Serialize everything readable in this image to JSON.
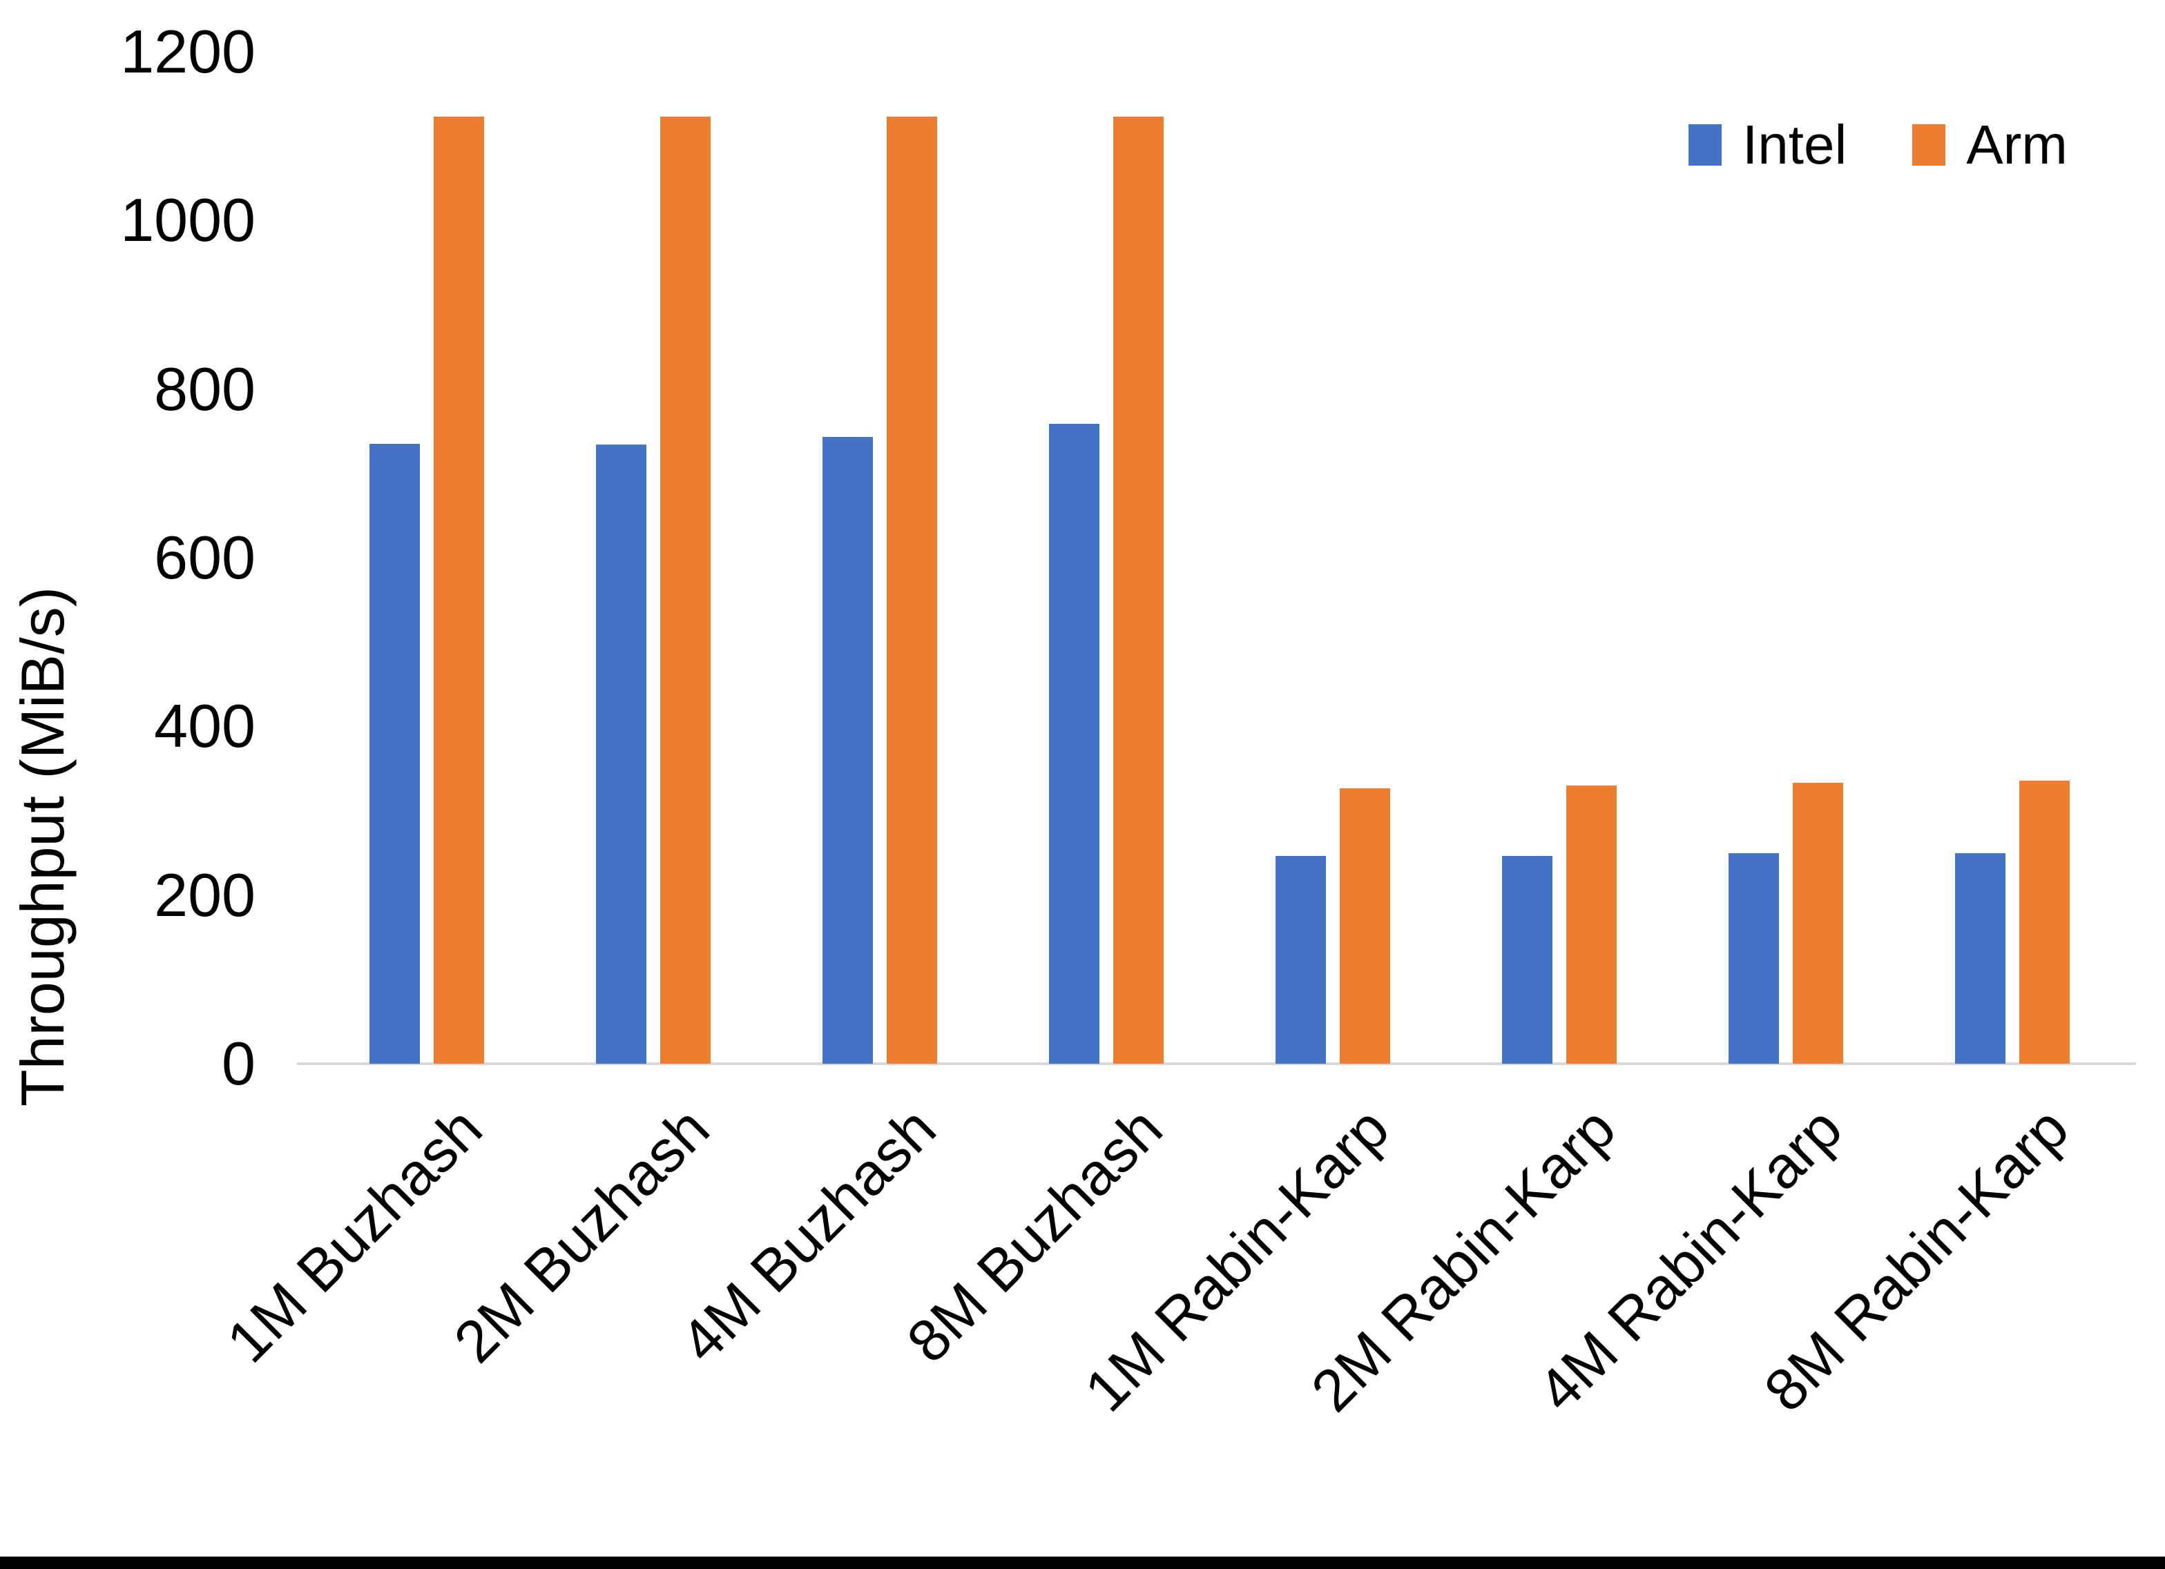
{
  "chart_data": {
    "type": "bar",
    "title": "",
    "ylabel": "Throughput (MiB/s)",
    "xlabel": "",
    "ylim": [
      0,
      1200
    ],
    "yticks": [
      0,
      200,
      400,
      600,
      800,
      1000,
      1200
    ],
    "grid": false,
    "legend_position": "top-right",
    "categories": [
      "1M Buzhash",
      "2M Buzhash",
      "4M Buzhash",
      "8M Buzhash",
      "1M Rabin-Karp",
      "2M Rabin-Karp",
      "4M Rabin-Karp",
      "8M Rabin-Karp"
    ],
    "series": [
      {
        "name": "Intel",
        "color": "#4472C4",
        "values": [
          735,
          734,
          743,
          759,
          246,
          246,
          250,
          250
        ]
      },
      {
        "name": "Arm",
        "color": "#ED7D31",
        "values": [
          1123,
          1123,
          1123,
          1123,
          327,
          330,
          333,
          336
        ]
      }
    ]
  },
  "colors": {
    "axis_line": "#D9D9D9",
    "text": "#000000",
    "background": "#FFFFFF",
    "bottom_strip": "#000000"
  }
}
